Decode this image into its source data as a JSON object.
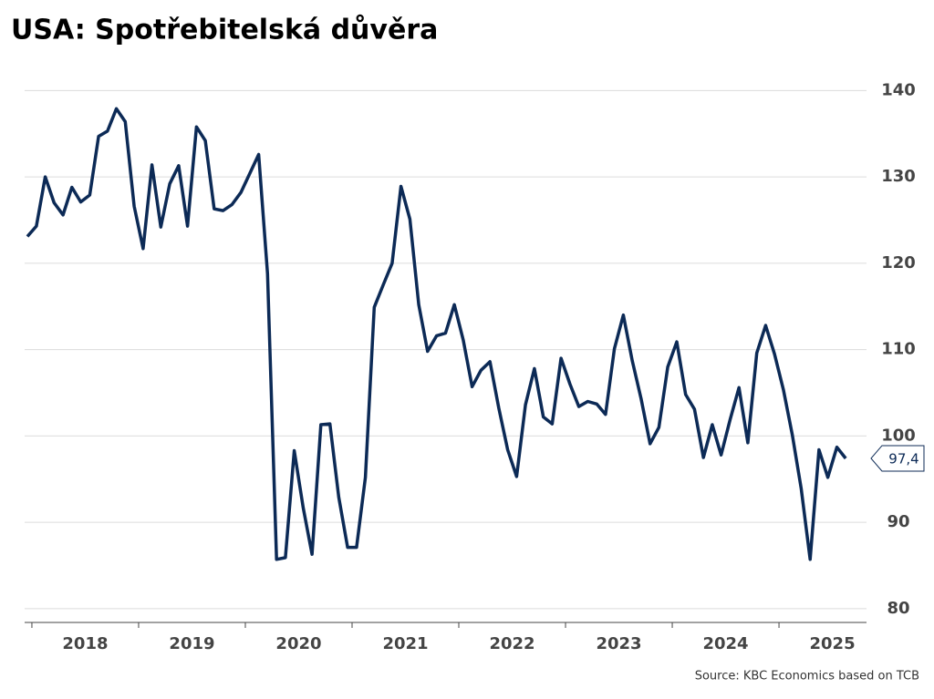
{
  "chart_data": {
    "type": "line",
    "title": "USA: Spotřebitelská důvěra",
    "source": "Source: KBC Economics based on TCB",
    "color": "#0c2a56",
    "x": [
      2017.958,
      2018.042,
      2018.125,
      2018.208,
      2018.292,
      2018.375,
      2018.458,
      2018.542,
      2018.625,
      2018.708,
      2018.792,
      2018.875,
      2018.958,
      2019.042,
      2019.125,
      2019.208,
      2019.292,
      2019.375,
      2019.458,
      2019.542,
      2019.625,
      2019.708,
      2019.792,
      2019.875,
      2019.958,
      2020.042,
      2020.125,
      2020.208,
      2020.292,
      2020.375,
      2020.458,
      2020.542,
      2020.625,
      2020.708,
      2020.792,
      2020.875,
      2020.958,
      2021.042,
      2021.125,
      2021.208,
      2021.292,
      2021.375,
      2021.458,
      2021.542,
      2021.625,
      2021.708,
      2021.792,
      2021.875,
      2021.958,
      2022.042,
      2022.125,
      2022.208,
      2022.292,
      2022.375,
      2022.458,
      2022.542,
      2022.625,
      2022.708,
      2022.792,
      2022.875,
      2022.958,
      2023.042,
      2023.125,
      2023.208,
      2023.292,
      2023.375,
      2023.458,
      2023.542,
      2023.625,
      2023.708,
      2023.792,
      2023.875,
      2023.958,
      2024.042,
      2024.125,
      2024.208,
      2024.292,
      2024.375,
      2024.458,
      2024.542,
      2024.625,
      2024.708,
      2024.792,
      2024.875,
      2024.958,
      2025.042,
      2025.125,
      2025.208,
      2025.292,
      2025.375,
      2025.458,
      2025.542,
      2025.625
    ],
    "values": [
      123.1,
      124.3,
      130.0,
      127.0,
      125.6,
      128.8,
      127.1,
      127.9,
      134.7,
      135.3,
      137.9,
      136.4,
      126.6,
      121.7,
      131.4,
      124.2,
      129.2,
      131.3,
      124.3,
      135.8,
      134.2,
      126.3,
      126.1,
      126.8,
      128.2,
      130.4,
      132.6,
      118.8,
      85.7,
      85.9,
      98.3,
      91.7,
      86.3,
      101.3,
      101.4,
      92.9,
      87.1,
      87.1,
      95.2,
      114.9,
      117.5,
      120.0,
      128.9,
      125.1,
      115.2,
      109.8,
      111.6,
      111.9,
      115.2,
      111.1,
      105.7,
      107.6,
      108.6,
      103.2,
      98.4,
      95.3,
      103.6,
      107.8,
      102.2,
      101.4,
      109.0,
      106.0,
      103.4,
      104.0,
      103.7,
      102.5,
      110.1,
      114.0,
      108.7,
      104.3,
      99.1,
      101.0,
      108.0,
      110.9,
      104.8,
      103.1,
      97.5,
      101.3,
      97.8,
      101.9,
      105.6,
      99.2,
      109.6,
      112.8,
      109.5,
      105.3,
      100.1,
      93.9,
      85.7,
      98.4,
      95.2,
      98.7,
      97.4
    ],
    "value_labels": [
      null,
      null,
      null,
      null,
      null,
      null,
      null,
      null,
      null,
      null,
      null,
      null,
      null,
      null,
      null,
      null,
      null,
      null,
      null,
      null,
      null,
      null,
      null,
      null,
      null,
      null,
      null,
      null,
      null,
      null,
      null,
      null,
      null,
      null,
      null,
      null,
      null,
      null,
      null,
      null,
      null,
      null,
      null,
      null,
      null,
      null,
      null,
      null,
      null,
      null,
      null,
      null,
      null,
      null,
      null,
      null,
      null,
      null,
      null,
      null,
      null,
      null,
      null,
      null,
      null,
      null,
      null,
      null,
      null,
      null,
      null,
      null,
      null,
      null,
      null,
      null,
      null,
      null,
      null,
      null,
      null,
      null,
      null,
      null,
      null,
      null,
      null,
      null,
      null,
      null,
      null,
      null,
      "97,4"
    ],
    "xlim": [
      2017.932,
      2025.82
    ],
    "xticks": [
      {
        "value": 2018.5,
        "label": "2018"
      },
      {
        "value": 2019.5,
        "label": "2019"
      },
      {
        "value": 2020.5,
        "label": "2020"
      },
      {
        "value": 2021.5,
        "label": "2021"
      },
      {
        "value": 2022.5,
        "label": "2022"
      },
      {
        "value": 2023.5,
        "label": "2023"
      },
      {
        "value": 2024.5,
        "label": "2024"
      },
      {
        "value": 2025.5,
        "label": "2025"
      }
    ],
    "ylim": [
      78.4,
      141.2
    ],
    "yticks": [
      80,
      90,
      100,
      110,
      120,
      130,
      140
    ],
    "grid": true
  }
}
